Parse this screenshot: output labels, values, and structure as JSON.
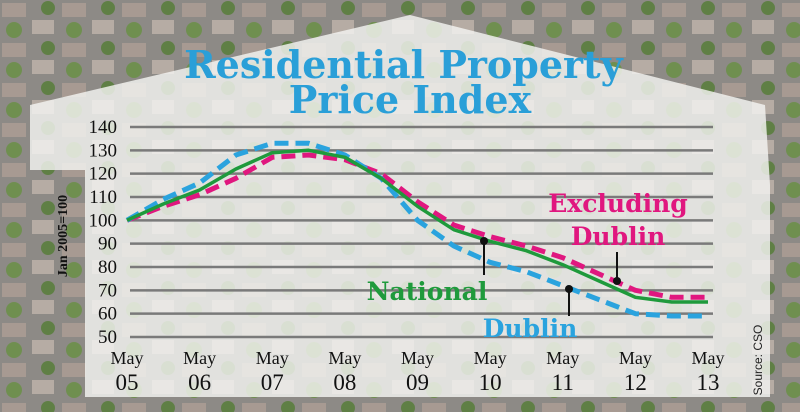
{
  "chart_data": {
    "type": "line",
    "title": "Residential Property Price Index",
    "ylabel": "Jan 2005=100",
    "source": "Source: CSO",
    "ylim": [
      50,
      140
    ],
    "yticks": [
      "140",
      "130",
      "120",
      "110",
      "100",
      "90",
      "80",
      "70",
      "60",
      "50"
    ],
    "xticks": [
      [
        "May",
        "05"
      ],
      [
        "May",
        "06"
      ],
      [
        "May",
        "07"
      ],
      [
        "May",
        "08"
      ],
      [
        "May",
        "09"
      ],
      [
        "May",
        "10"
      ],
      [
        "May",
        "11"
      ],
      [
        "May",
        "12"
      ],
      [
        "May",
        "13"
      ]
    ],
    "grid": true,
    "x": [
      2005.0,
      2005.5,
      2006.0,
      2006.5,
      2007.0,
      2007.5,
      2008.0,
      2008.5,
      2009.0,
      2009.5,
      2010.0,
      2010.5,
      2011.0,
      2011.5,
      2012.0,
      2012.5,
      2013.0
    ],
    "series": [
      {
        "name": "National",
        "color": "#1f9a3c",
        "style": "solid",
        "values": [
          100,
          107,
          113,
          122,
          129,
          130,
          127,
          118,
          106,
          96,
          91,
          87,
          81,
          74,
          67,
          65,
          65
        ]
      },
      {
        "name": "Dublin",
        "color": "#2aa3de",
        "style": "dashed",
        "values": [
          100,
          109,
          116,
          128,
          133,
          133,
          128,
          118,
          100,
          89,
          82,
          78,
          72,
          66,
          60,
          59,
          59
        ]
      },
      {
        "name": "Excluding Dublin",
        "color": "#e0177f",
        "style": "dashed",
        "values": [
          100,
          106,
          111,
          118,
          127,
          128,
          126,
          120,
          108,
          98,
          93,
          89,
          84,
          77,
          70,
          67,
          67
        ]
      }
    ],
    "annotations": [
      {
        "series": "National",
        "lines": [
          "National"
        ]
      },
      {
        "series": "Dublin",
        "lines": [
          "Dublin"
        ]
      },
      {
        "series": "Excluding Dublin",
        "lines": [
          "Excluding",
          "Dublin"
        ]
      }
    ]
  }
}
